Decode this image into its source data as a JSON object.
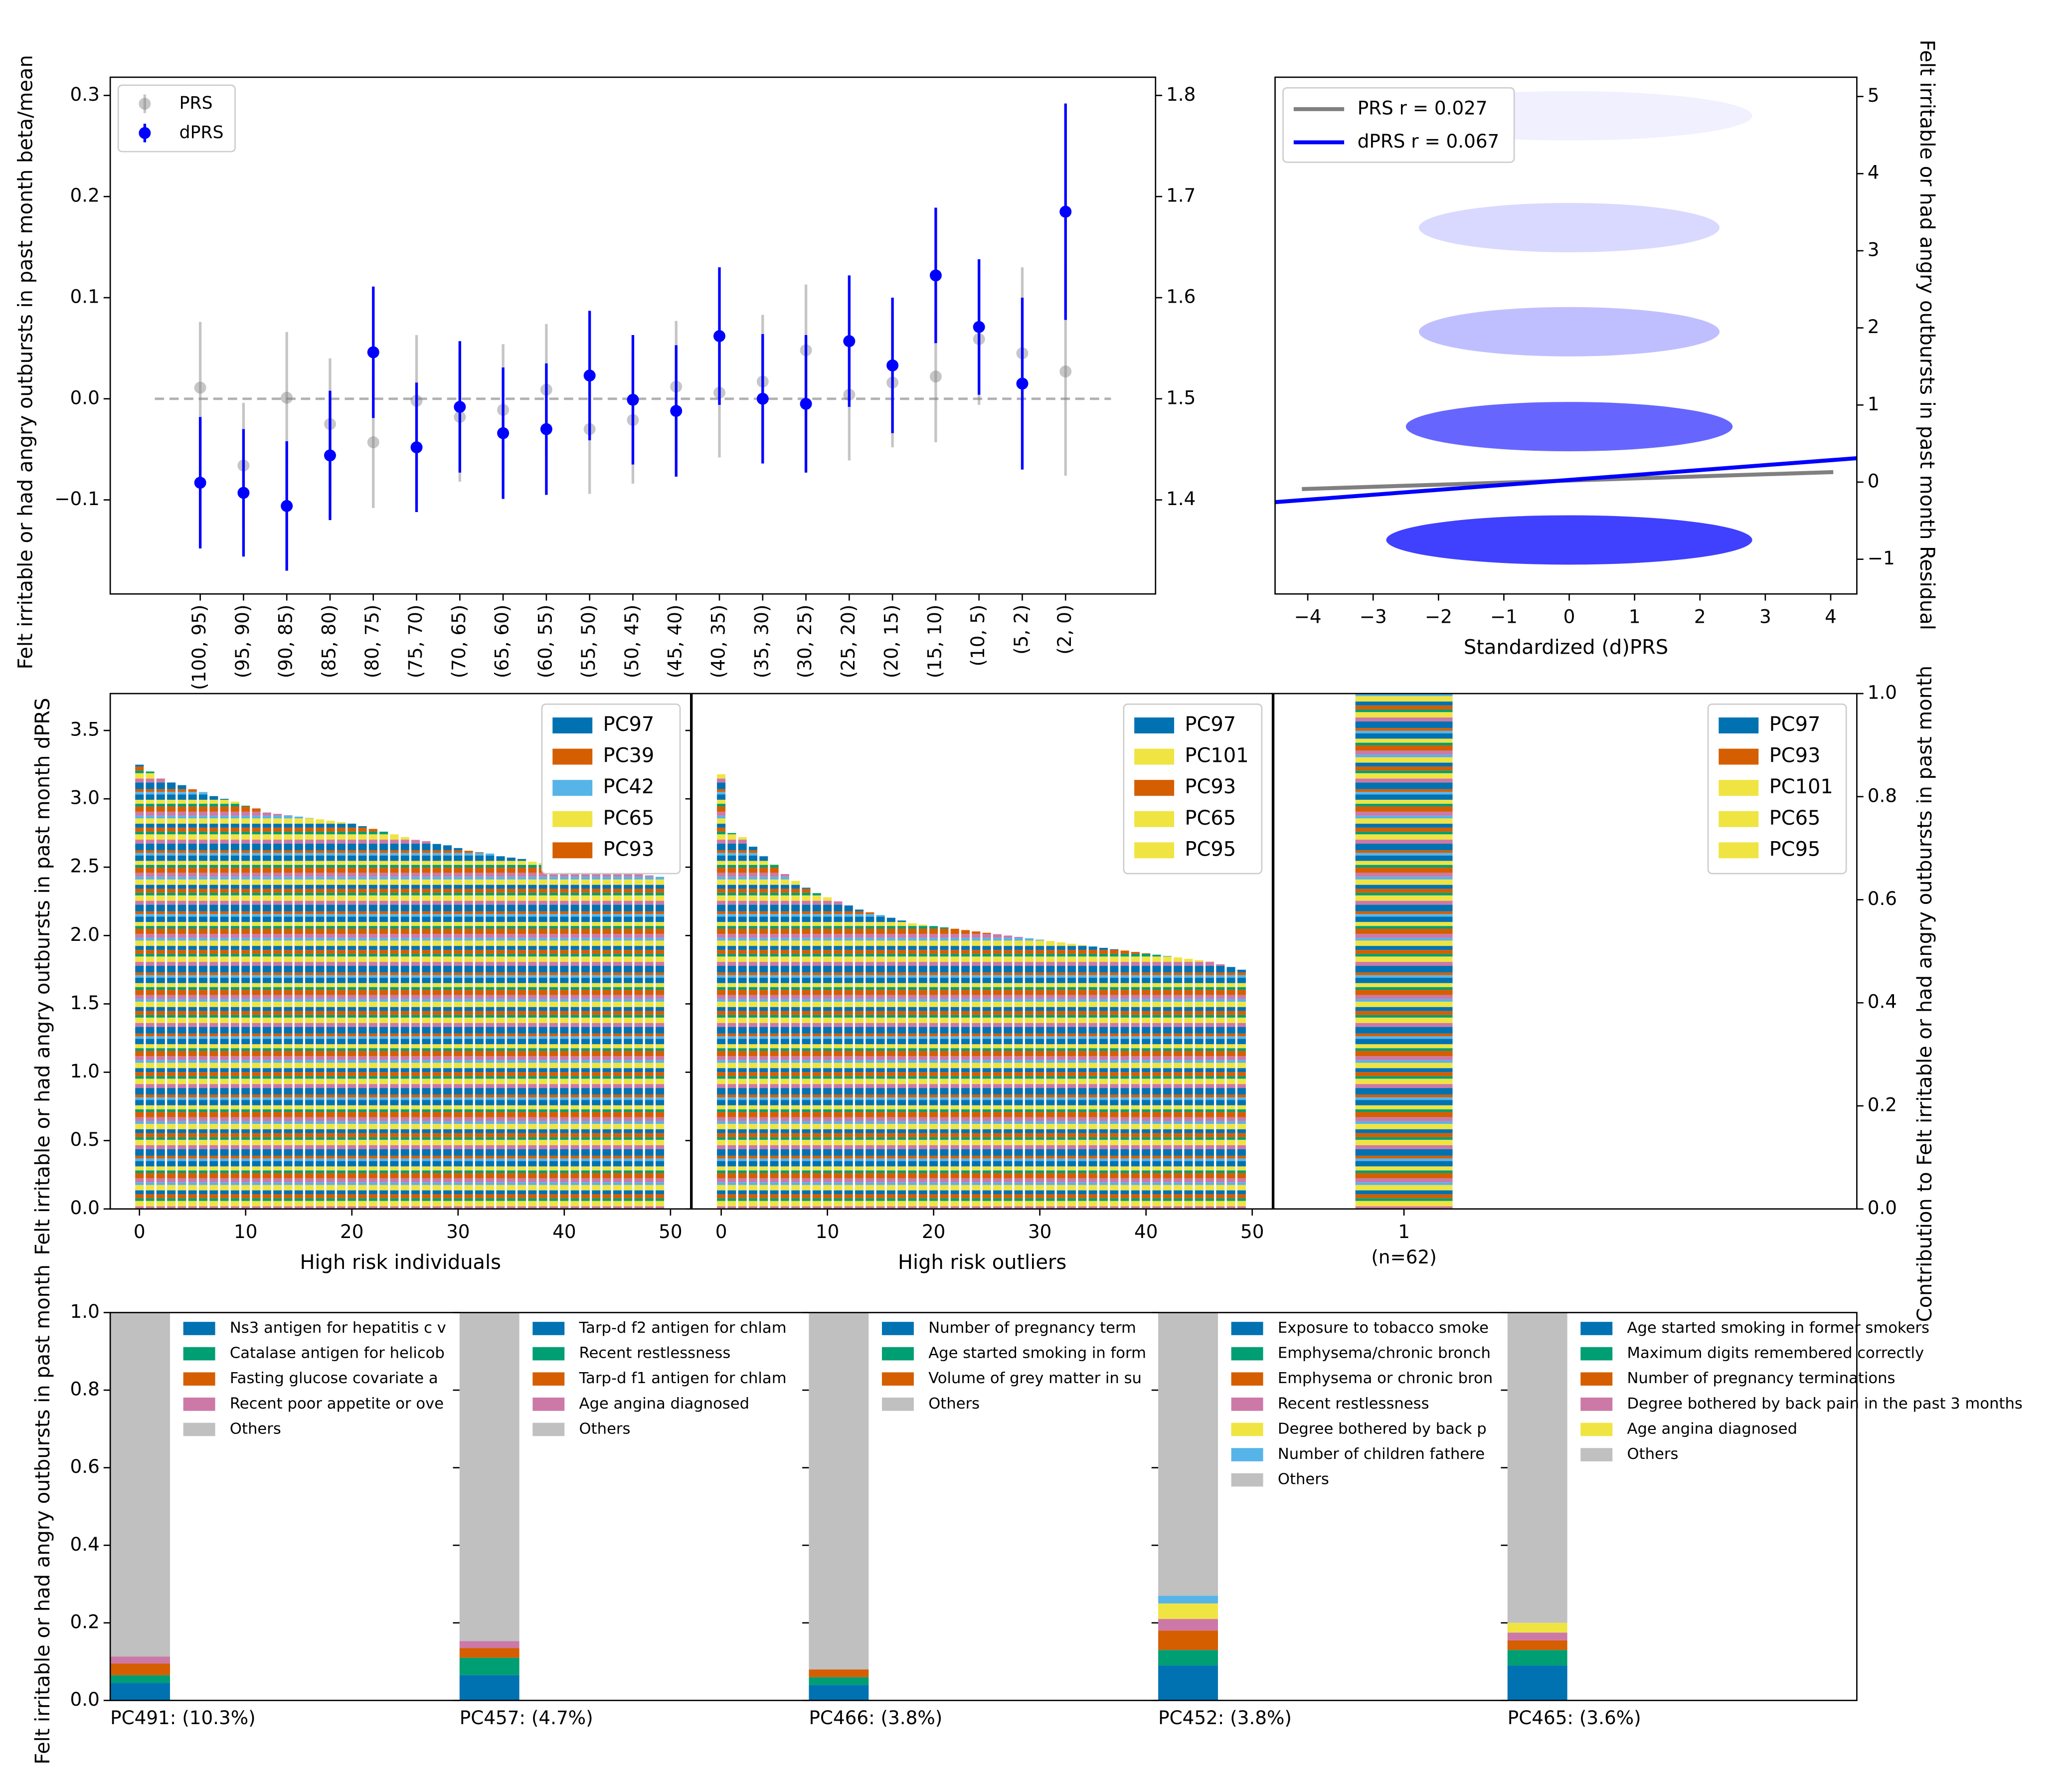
{
  "chart_data": [
    {
      "type": "errorbar",
      "ylabel": "Felt irritable or had angry outbursts in past month beta/mean",
      "categories": [
        "(100, 95)",
        "(95, 90)",
        "(90, 85)",
        "(85, 80)",
        "(80, 75)",
        "(75, 70)",
        "(70, 65)",
        "(65, 60)",
        "(60, 55)",
        "(55, 50)",
        "(50, 45)",
        "(45, 40)",
        "(40, 35)",
        "(35, 30)",
        "(30, 25)",
        "(25, 20)",
        "(20, 15)",
        "(15, 10)",
        "(10, 5)",
        "(5, 2)",
        "(2, 0)"
      ],
      "series": [
        {
          "name": "PRS",
          "color": "#808080",
          "alpha": 0.45,
          "values": [
            0.011,
            -0.066,
            0.001,
            -0.025,
            -0.043,
            -0.002,
            -0.018,
            -0.011,
            0.009,
            -0.03,
            -0.021,
            0.012,
            0.006,
            0.017,
            0.048,
            0.004,
            0.016,
            0.022,
            0.059,
            0.045,
            0.027
          ],
          "errors": [
            0.065,
            0.062,
            0.065,
            0.065,
            0.065,
            0.065,
            0.064,
            0.065,
            0.065,
            0.064,
            0.063,
            0.065,
            0.064,
            0.066,
            0.065,
            0.065,
            0.064,
            0.065,
            0.065,
            0.085,
            0.103
          ]
        },
        {
          "name": "dPRS",
          "color": "#0000ff",
          "alpha": 1,
          "values": [
            -0.083,
            -0.093,
            -0.106,
            -0.056,
            0.046,
            -0.048,
            -0.008,
            -0.034,
            -0.03,
            0.023,
            -0.001,
            -0.012,
            0.062,
            0.0,
            -0.005,
            0.057,
            0.033,
            0.122,
            0.071,
            0.015,
            0.185
          ],
          "errors": [
            0.065,
            0.063,
            0.064,
            0.064,
            0.065,
            0.064,
            0.065,
            0.065,
            0.065,
            0.064,
            0.064,
            0.065,
            0.068,
            0.064,
            0.068,
            0.065,
            0.067,
            0.067,
            0.067,
            0.085,
            0.107
          ]
        }
      ],
      "reference_line": 0,
      "ylim": [
        -0.193,
        0.318
      ],
      "yticks": [
        {
          "value": -0.1,
          "label": "−0.1"
        },
        {
          "value": 0,
          "label": "0.0"
        },
        0.1,
        0.2,
        0.3
      ],
      "y2lim": [
        1.307,
        1.818
      ],
      "y2ticks": [
        1.4,
        1.5,
        1.6,
        1.7,
        1.8
      ],
      "legend": "upper left"
    },
    {
      "type": "scatter",
      "xlabel": "Standardized (d)PRS",
      "ylabel": "Felt irritable or had angry outbursts in past month Residual",
      "clusters": {
        "y": [
          -0.75,
          0.72,
          1.95,
          3.3,
          4.75
        ],
        "x_spread": [
          2.8,
          2.5,
          2.3,
          2.3,
          2.8
        ],
        "density": [
          0.75,
          0.6,
          0.25,
          0.15,
          0.06
        ]
      },
      "series": [
        {
          "name": "PRS r = 0.027",
          "color": "#808080",
          "x": [
            -4.09,
            4.04
          ],
          "values": [
            -0.09,
            0.13
          ]
        },
        {
          "name": "dPRS r = 0.067",
          "color": "#0000ff",
          "x": [
            -4.5,
            4.4
          ],
          "values": [
            -0.26,
            0.31
          ]
        }
      ],
      "xlim": [
        -4.5,
        4.4
      ],
      "xticks": [
        {
          "value": -4,
          "label": "−4"
        },
        {
          "value": -3,
          "label": "−3"
        },
        {
          "value": -2,
          "label": "−2"
        },
        {
          "value": -1,
          "label": "−1"
        },
        0,
        1,
        2,
        3,
        4
      ],
      "ylim": [
        -1.45,
        5.25
      ],
      "yticks": [
        {
          "value": -1,
          "label": "−1"
        },
        0,
        1,
        2,
        3,
        4,
        5
      ],
      "legend": "upper left"
    },
    {
      "type": "bar",
      "xlabel": "High risk individuals",
      "ylabel": "Felt irritable or had angry outbursts in past month dPRS",
      "x": [
        0,
        1,
        2,
        3,
        4,
        5,
        6,
        7,
        8,
        9,
        10,
        11,
        12,
        13,
        14,
        15,
        16,
        17,
        18,
        19,
        20,
        21,
        22,
        23,
        24,
        25,
        26,
        27,
        28,
        29,
        30,
        31,
        32,
        33,
        34,
        35,
        36,
        37,
        38,
        39,
        40,
        41,
        42,
        43,
        44,
        45,
        46,
        47,
        48,
        49
      ],
      "values": [
        3.25,
        3.2,
        3.15,
        3.12,
        3.1,
        3.07,
        3.05,
        3.02,
        3.0,
        2.98,
        2.95,
        2.93,
        2.9,
        2.89,
        2.88,
        2.87,
        2.86,
        2.85,
        2.84,
        2.83,
        2.82,
        2.8,
        2.78,
        2.76,
        2.74,
        2.72,
        2.7,
        2.69,
        2.67,
        2.66,
        2.64,
        2.62,
        2.61,
        2.6,
        2.58,
        2.57,
        2.56,
        2.54,
        2.53,
        2.52,
        2.51,
        2.5,
        2.49,
        2.48,
        2.47,
        2.46,
        2.46,
        2.45,
        2.44,
        2.43
      ],
      "legend_entries": [
        {
          "name": "PC97",
          "color": "#0072b2"
        },
        {
          "name": "PC39",
          "color": "#d55e00"
        },
        {
          "name": "PC42",
          "color": "#56b4e9"
        },
        {
          "name": "PC65",
          "color": "#f0e442"
        },
        {
          "name": "PC93",
          "color": "#d55e00"
        }
      ],
      "xlim": [
        -2.75,
        51.9
      ],
      "xticks": [
        0,
        10,
        20,
        30,
        40,
        50
      ],
      "ylim": [
        0,
        3.77
      ],
      "yticks": [
        {
          "value": 0,
          "label": "0.0"
        },
        0.5,
        {
          "value": 1,
          "label": "1.0"
        },
        1.5,
        {
          "value": 2,
          "label": "2.0"
        },
        2.5,
        {
          "value": 3,
          "label": "3.0"
        },
        3.5
      ],
      "legend": "upper right"
    },
    {
      "type": "bar",
      "xlabel": "High risk outliers",
      "x": [
        0,
        1,
        2,
        3,
        4,
        5,
        6,
        7,
        8,
        9,
        10,
        11,
        12,
        13,
        14,
        15,
        16,
        17,
        18,
        19,
        20,
        21,
        22,
        23,
        24,
        25,
        26,
        27,
        28,
        29,
        30,
        31,
        32,
        33,
        34,
        35,
        36,
        37,
        38,
        39,
        40,
        41,
        42,
        43,
        44,
        45,
        46,
        47,
        48,
        49
      ],
      "values": [
        3.18,
        2.75,
        2.72,
        2.65,
        2.58,
        2.52,
        2.45,
        2.4,
        2.35,
        2.31,
        2.28,
        2.25,
        2.22,
        2.19,
        2.17,
        2.15,
        2.13,
        2.11,
        2.09,
        2.08,
        2.07,
        2.06,
        2.05,
        2.04,
        2.03,
        2.02,
        2.01,
        2.0,
        1.99,
        1.98,
        1.97,
        1.96,
        1.95,
        1.94,
        1.93,
        1.92,
        1.91,
        1.9,
        1.89,
        1.88,
        1.87,
        1.86,
        1.85,
        1.84,
        1.83,
        1.82,
        1.81,
        1.79,
        1.77,
        1.75
      ],
      "legend_entries": [
        {
          "name": "PC97",
          "color": "#0072b2"
        },
        {
          "name": "PC101",
          "color": "#f0e442"
        },
        {
          "name": "PC93",
          "color": "#d55e00"
        },
        {
          "name": "PC65",
          "color": "#f0e442"
        },
        {
          "name": "PC95",
          "color": "#f0e442"
        }
      ],
      "xlim": [
        -2.75,
        51.9
      ],
      "xticks": [
        0,
        10,
        20,
        30,
        40,
        50
      ],
      "ylim": [
        0,
        3.77
      ],
      "yticks": [
        0,
        0.5,
        1,
        1.5,
        2,
        2.5,
        3,
        3.5
      ],
      "legend": "upper right"
    },
    {
      "type": "bar",
      "xlabel": "(n=62)",
      "ylabel": "Contribution to Felt irritable or had angry outbursts in past month",
      "x": [
        1
      ],
      "values": [
        1.0
      ],
      "legend_entries": [
        {
          "name": "PC97",
          "color": "#0072b2"
        },
        {
          "name": "PC93",
          "color": "#d55e00"
        },
        {
          "name": "PC101",
          "color": "#f0e442"
        },
        {
          "name": "PC65",
          "color": "#f0e442"
        },
        {
          "name": "PC95",
          "color": "#f0e442"
        }
      ],
      "xlim": [
        0.33,
        3.33
      ],
      "xticks": [
        1
      ],
      "ylim": [
        0,
        1
      ],
      "yticks": [
        {
          "value": 0,
          "label": "0.0"
        },
        0.2,
        0.4,
        0.6,
        0.8,
        {
          "value": 1,
          "label": "1.0"
        }
      ],
      "legend": "upper right"
    },
    {
      "type": "stacked_bar",
      "xlabel": "PC491: (10.3%)",
      "ylabel": "Felt irritable or had angry outbursts in past month",
      "series": [
        {
          "name": "Ns3 antigen for hepatitis c v",
          "color": "#0072b2",
          "values": [
            0.045
          ]
        },
        {
          "name": "Catalase antigen for helicob",
          "color": "#009e73",
          "values": [
            0.02
          ]
        },
        {
          "name": "Fasting glucose covariate a",
          "color": "#d55e00",
          "values": [
            0.03
          ]
        },
        {
          "name": "Recent poor appetite or ove",
          "color": "#cc79a7",
          "values": [
            0.018
          ]
        },
        {
          "name": "Others",
          "color": "#c0c0c0",
          "values": [
            0.887
          ]
        }
      ],
      "ylim": [
        0,
        1
      ],
      "yticks": [
        {
          "value": 0,
          "label": "0.0"
        },
        0.2,
        0.4,
        0.6,
        0.8,
        {
          "value": 1,
          "label": "1.0"
        }
      ]
    },
    {
      "type": "stacked_bar",
      "xlabel": "PC457: (4.7%)",
      "series": [
        {
          "name": "Tarp-d f2 antigen for chlam",
          "color": "#0072b2",
          "values": [
            0.065
          ]
        },
        {
          "name": "Recent restlessness",
          "color": "#009e73",
          "values": [
            0.045
          ]
        },
        {
          "name": "Tarp-d f1 antigen for chlam",
          "color": "#d55e00",
          "values": [
            0.025
          ]
        },
        {
          "name": "Age angina diagnosed",
          "color": "#cc79a7",
          "values": [
            0.018
          ]
        },
        {
          "name": "Others",
          "color": "#c0c0c0",
          "values": [
            0.847
          ]
        }
      ],
      "ylim": [
        0,
        1
      ],
      "yticks": [
        0,
        0.2,
        0.4,
        0.6,
        0.8,
        1
      ]
    },
    {
      "type": "stacked_bar",
      "xlabel": "PC466: (3.8%)",
      "series": [
        {
          "name": "Number of pregnancy term",
          "color": "#0072b2",
          "values": [
            0.04
          ]
        },
        {
          "name": "Age started smoking in form",
          "color": "#009e73",
          "values": [
            0.02
          ]
        },
        {
          "name": "Volume of grey matter in su",
          "color": "#d55e00",
          "values": [
            0.02
          ]
        },
        {
          "name": "Others",
          "color": "#c0c0c0",
          "values": [
            0.92
          ]
        }
      ],
      "ylim": [
        0,
        1
      ],
      "yticks": [
        0,
        0.2,
        0.4,
        0.6,
        0.8,
        1
      ]
    },
    {
      "type": "stacked_bar",
      "xlabel": "PC452: (3.8%)",
      "series": [
        {
          "name": "Exposure to tobacco smoke",
          "color": "#0072b2",
          "values": [
            0.09
          ]
        },
        {
          "name": "Emphysema/chronic bronch",
          "color": "#009e73",
          "values": [
            0.04
          ]
        },
        {
          "name": "Emphysema or chronic bron",
          "color": "#d55e00",
          "values": [
            0.05
          ]
        },
        {
          "name": "Recent restlessness",
          "color": "#cc79a7",
          "values": [
            0.03
          ]
        },
        {
          "name": "Degree bothered by back p",
          "color": "#f0e442",
          "values": [
            0.04
          ]
        },
        {
          "name": "Number of children fathere",
          "color": "#56b4e9",
          "values": [
            0.02
          ]
        },
        {
          "name": "Others",
          "color": "#c0c0c0",
          "values": [
            0.73
          ]
        }
      ],
      "ylim": [
        0,
        1
      ],
      "yticks": [
        0,
        0.2,
        0.4,
        0.6,
        0.8,
        1
      ]
    },
    {
      "type": "stacked_bar",
      "xlabel": "PC465: (3.6%)",
      "series": [
        {
          "name": "Age started smoking in former smokers",
          "color": "#0072b2",
          "values": [
            0.09
          ]
        },
        {
          "name": "Maximum digits remembered correctly",
          "color": "#009e73",
          "values": [
            0.04
          ]
        },
        {
          "name": "Number of pregnancy terminations",
          "color": "#d55e00",
          "values": [
            0.025
          ]
        },
        {
          "name": "Degree bothered by back pain in the past 3 months",
          "color": "#cc79a7",
          "values": [
            0.02
          ]
        },
        {
          "name": "Age angina diagnosed",
          "color": "#f0e442",
          "values": [
            0.025
          ]
        },
        {
          "name": "Others",
          "color": "#c0c0c0",
          "values": [
            0.8
          ]
        }
      ],
      "ylim": [
        0,
        1
      ],
      "yticks": [
        0,
        0.2,
        0.4,
        0.6,
        0.8,
        1
      ]
    }
  ]
}
